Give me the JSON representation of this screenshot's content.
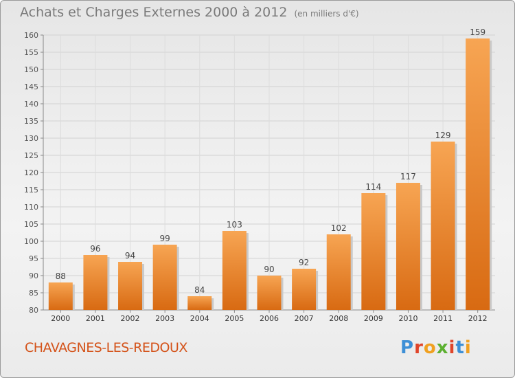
{
  "header": {
    "title": "Achats et Charges Externes 2000 à 2012",
    "unit": "(en milliers d'€)"
  },
  "footer": {
    "commune": "CHAVAGNES-LES-REDOUX",
    "logo_text": "Proxiti",
    "logo_colors": [
      "#3d8fd6",
      "#e0452a",
      "#f0a020",
      "#5cb030",
      "#e0452a",
      "#3d8fd6",
      "#f0a020"
    ]
  },
  "chart_data": {
    "type": "bar",
    "categories": [
      "2000",
      "2001",
      "2002",
      "2003",
      "2004",
      "2005",
      "2006",
      "2007",
      "2008",
      "2009",
      "2010",
      "2011",
      "2012"
    ],
    "values": [
      88,
      96,
      94,
      99,
      84,
      103,
      90,
      92,
      102,
      114,
      117,
      129,
      159
    ],
    "ylim": [
      80,
      160
    ],
    "yticks": [
      80,
      85,
      90,
      95,
      100,
      105,
      110,
      115,
      120,
      125,
      130,
      135,
      140,
      145,
      150,
      155,
      160
    ],
    "grid": true,
    "bar_color": "#f0932e"
  }
}
